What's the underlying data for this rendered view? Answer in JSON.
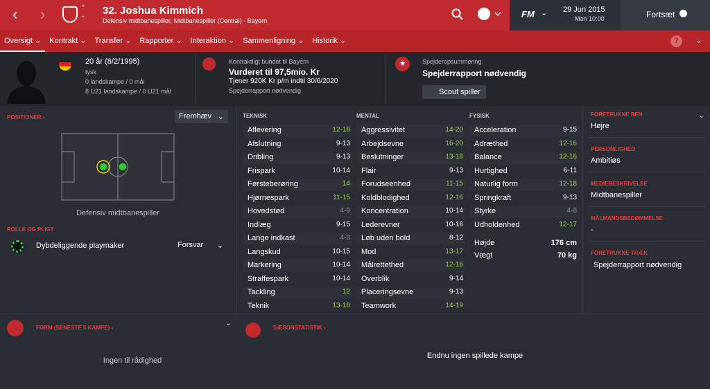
{
  "header": {
    "title": "32. Joshua Kimmich",
    "subtitle": "Defensiv midtbanespiller, Midtbanespiller (Central) - Bayern",
    "logo": "FM",
    "date": "29 Jun 2015",
    "time": "Man 10:00",
    "continue": "Fortsæt"
  },
  "nav": {
    "tabs": [
      "Oversigt",
      "Kontrakt",
      "Transfer",
      "Rapporter",
      "Interaktion",
      "Sammenligning",
      "Historik"
    ]
  },
  "profile": {
    "age": "20 år (8/2/1995)",
    "nationality": "tysk",
    "caps": "0 landskampe / 0 mål",
    "u21": "8 U21 landskampe / 0 U21 mål"
  },
  "contract": {
    "label": "Kontraktligt bundet til Bayern",
    "value": "Vurderet til 97,5mio. Kr",
    "wage": "Tjener 920K Kr p/m indtil 30/6/2020",
    "note": "Spejderrapport nødvendig"
  },
  "scout": {
    "label": "Spejderopsummering",
    "title": "Spejderrapport nødvendig",
    "button": "Scout spiller"
  },
  "positions": {
    "heading": "POSITIONER ›",
    "filter": "Fremhæv",
    "position": "Defensiv midtbanespiller"
  },
  "role": {
    "heading": "ROLLE OG PLIGT",
    "role": "Dybdeliggende playmaker",
    "duty": "Forsvar"
  },
  "attributes": [
    {
      "heading": "TEKNISK",
      "rows": [
        [
          "Aflevering",
          "12-18"
        ],
        [
          "Afslutning",
          "9-13"
        ],
        [
          "Dribling",
          "9-13"
        ],
        [
          "Frispark",
          "10-14"
        ],
        [
          "Førsteberøring",
          "14"
        ],
        [
          "Hjørnespark",
          "11-15"
        ],
        [
          "Hovedstød",
          "4-9"
        ],
        [
          "Indlæg",
          "9-15"
        ],
        [
          "Lange indkast",
          "4-8"
        ],
        [
          "Langskud",
          "10-15"
        ],
        [
          "Markering",
          "10-14"
        ],
        [
          "Straffespark",
          "10-14"
        ],
        [
          "Tackling",
          "12"
        ],
        [
          "Teknik",
          "13-18"
        ]
      ]
    },
    {
      "heading": "MENTAL",
      "rows": [
        [
          "Aggressivitet",
          "14-20"
        ],
        [
          "Arbejdsevne",
          "16-20"
        ],
        [
          "Beslutninger",
          "13-18"
        ],
        [
          "Flair",
          "9-13"
        ],
        [
          "Forudseenhed",
          "11-15"
        ],
        [
          "Koldblodighed",
          "12-16"
        ],
        [
          "Koncentration",
          "10-14"
        ],
        [
          "Lederevner",
          "10-16"
        ],
        [
          "Løb uden bold",
          "8-12"
        ],
        [
          "Mod",
          "13-17"
        ],
        [
          "Målrettethed",
          "12-16"
        ],
        [
          "Overblik",
          "9-14"
        ],
        [
          "Placeringsevne",
          "9-13"
        ],
        [
          "Teamwork",
          "14-19"
        ]
      ]
    },
    {
      "heading": "FYSISK",
      "rows": [
        [
          "Acceleration",
          "9-15"
        ],
        [
          "Adræthed",
          "12-16"
        ],
        [
          "Balance",
          "12-16"
        ],
        [
          "Hurtighed",
          "6-11"
        ],
        [
          "Naturlig form",
          "12-18"
        ],
        [
          "Springkraft",
          "9-13"
        ],
        [
          "Styrke",
          "4-8"
        ],
        [
          "Udholdenhed",
          "12-17"
        ]
      ],
      "extra": [
        [
          "Højde",
          "176 cm"
        ],
        [
          "Vægt",
          "70 kg"
        ]
      ]
    }
  ],
  "details": [
    {
      "heading": "FORETRUKNE BEN",
      "value": "Højre"
    },
    {
      "heading": "PERSONLIGHED",
      "value": "Ambitiøs"
    },
    {
      "heading": "MEDIEBESKRIVELSE",
      "value": "Midtbanespiller"
    },
    {
      "heading": "MÅLMANDSBEDØMMELSE",
      "value": "-"
    },
    {
      "heading": "FORETRUKNE TRÆK",
      "value": "Spejderrapport nødvendig"
    }
  ],
  "form": {
    "heading": "FORM (SENESTE 5 KAMPE) ›",
    "empty": "Ingen til rådighed"
  },
  "season": {
    "heading": "SÆSONSTATISTIK ›",
    "empty": "Endnu ingen spillede kampe"
  }
}
